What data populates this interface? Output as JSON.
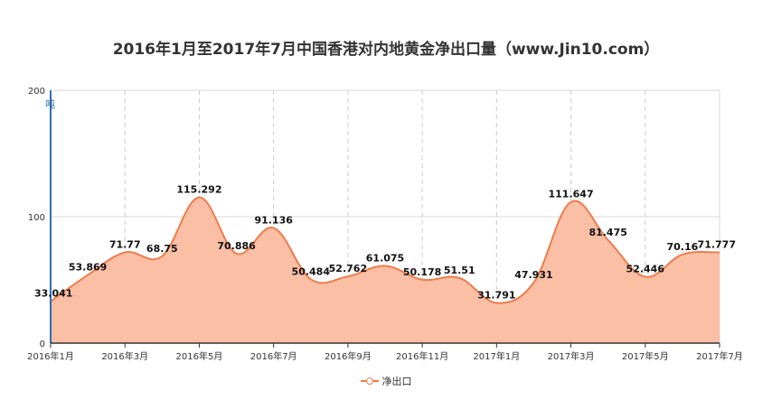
{
  "chart_data": {
    "type": "area",
    "title": "2016年1月至2017年7月中国香港对内地黄金净出口量（www.Jin10.com）",
    "unit": "吨",
    "xlabel": "",
    "ylabel": "",
    "ylim": [
      0,
      200
    ],
    "yticks": [
      "0",
      "100",
      "200"
    ],
    "x": [
      "2016年1月",
      "2016年2月",
      "2016年3月",
      "2016年4月",
      "2016年5月",
      "2016年6月",
      "2016年7月",
      "2016年8月",
      "2016年9月",
      "2016年10月",
      "2016年11月",
      "2016年12月",
      "2017年1月",
      "2017年2月",
      "2017年3月",
      "2017年4月",
      "2017年5月",
      "2017年6月",
      "2017年7月"
    ],
    "xtick_labels": [
      "2016年1月",
      "2016年3月",
      "2016年5月",
      "2016年7月",
      "2016年9月",
      "2016年11月",
      "2017年1月",
      "2017年3月",
      "2017年5月",
      "2017年7月"
    ],
    "grid": true,
    "legend": "bottom",
    "series": [
      {
        "name": "净出口",
        "values": [
          33.041,
          53.869,
          71.77,
          68.75,
          115.292,
          70.886,
          91.136,
          50.484,
          52.762,
          61.075,
          50.178,
          51.51,
          31.791,
          47.931,
          111.647,
          81.475,
          52.446,
          70.16,
          71.777
        ],
        "labels": [
          "33.041",
          "53.869",
          "71.77",
          "68.75",
          "115.292",
          "70.886",
          "91.136",
          "50.484",
          "52.762",
          "61.075",
          "50.178",
          "51.51",
          "31.791",
          "47.931",
          "111.647",
          "81.475",
          "52.446",
          "70.16",
          "71.777"
        ],
        "line_color": "#f07b4a",
        "fill_color": "#fbbfa6"
      }
    ]
  }
}
